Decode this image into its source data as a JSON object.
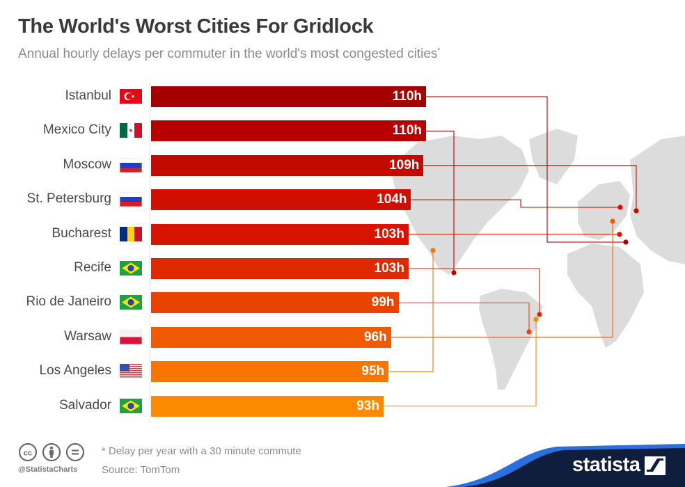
{
  "title": "The World's Worst Cities For Gridlock",
  "subtitle": "Annual hourly delays per commuter in the world's most congested cities",
  "subtitle_marker": "*",
  "chart_data": {
    "type": "bar",
    "orientation": "horizontal",
    "title": "The World's Worst Cities For Gridlock",
    "subtitle": "Annual hourly delays per commuter in the world's most congested cities*",
    "xlabel": "",
    "ylabel": "",
    "unit": "h",
    "xlim": [
      0,
      110
    ],
    "grid": false,
    "categories": [
      "Istanbul",
      "Mexico City",
      "Moscow",
      "St. Petersburg",
      "Bucharest",
      "Recife",
      "Rio de Janeiro",
      "Warsaw",
      "Los Angeles",
      "Salvador"
    ],
    "values": [
      110,
      110,
      109,
      104,
      103,
      103,
      99,
      96,
      95,
      93
    ],
    "value_labels": [
      "110h",
      "110h",
      "109h",
      "104h",
      "103h",
      "103h",
      "99h",
      "96h",
      "95h",
      "93h"
    ],
    "flags": [
      "turkey-flag",
      "mexico-flag",
      "russia-flag",
      "russia-flag",
      "romania-flag",
      "brazil-flag",
      "brazil-flag",
      "poland-flag",
      "usa-flag",
      "brazil-flag"
    ],
    "colors": [
      "#a50000",
      "#b80000",
      "#c40a00",
      "#d00f00",
      "#d81400",
      "#e02800",
      "#e84400",
      "#f05a00",
      "#f77500",
      "#fb8a00"
    ]
  },
  "footer": {
    "note": "* Delay per year with a 30 minute commute",
    "source": "Source: TomTom",
    "handle": "@StatistaCharts",
    "license_icons": [
      "cc-icon",
      "by-icon",
      "nd-icon"
    ]
  },
  "brand": {
    "name": "statista",
    "band_color": "#0f1e3d",
    "accent_color": "#2a6fdb"
  }
}
